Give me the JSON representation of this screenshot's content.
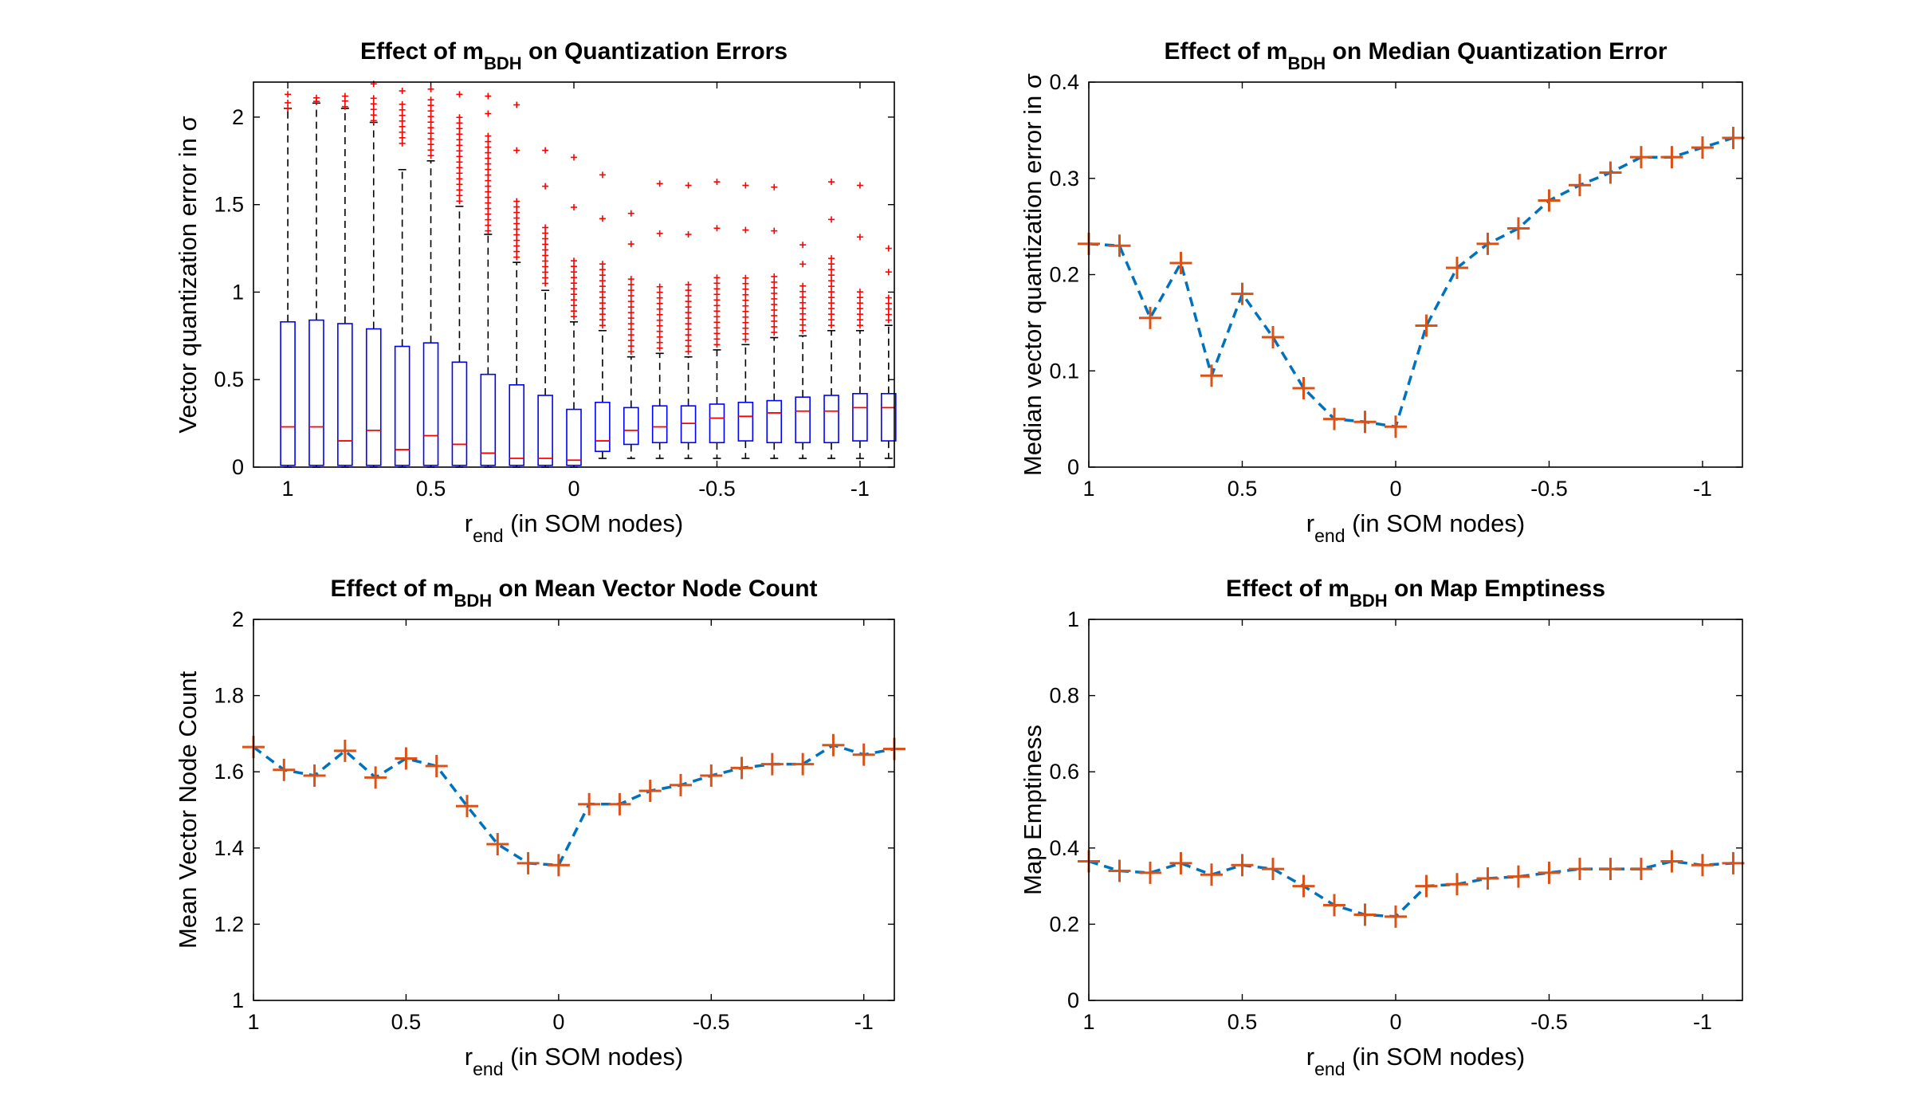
{
  "colors": {
    "box": "#0000ff",
    "median_bar": "#ff0000",
    "outlier": "#ff0000",
    "whisker": "#000000",
    "line": "#0072bd",
    "marker": "#d95319"
  },
  "chart_data": [
    {
      "type": "box",
      "title": "Effect of m",
      "title_sub": "BDH",
      "title_rest": " on Quantization Errors",
      "xlabel": "r",
      "xlabel_sub": "end",
      "xlabel_rest": " (in SOM nodes)",
      "ylabel": "Vector quantization error in σ",
      "xlim": [
        1.12,
        -1.12
      ],
      "ylim": [
        0,
        2.2
      ],
      "xticks": [
        1,
        0.5,
        0,
        -0.5,
        -1
      ],
      "xtick_labels": [
        "1",
        "0.5",
        "0",
        "-0.5",
        "-1"
      ],
      "yticks": [
        0,
        0.5,
        1,
        1.5,
        2
      ],
      "ytick_labels": [
        "0",
        "0.5",
        "1",
        "1.5",
        "2"
      ],
      "x": [
        1.0,
        0.9,
        0.8,
        0.7,
        0.6,
        0.5,
        0.4,
        0.3,
        0.2,
        0.1,
        0.0,
        -0.1,
        -0.2,
        -0.3,
        -0.4,
        -0.5,
        -0.6,
        -0.7,
        -0.8,
        -0.9,
        -1.0,
        -1.1
      ],
      "q1": [
        0.01,
        0.01,
        0.01,
        0.01,
        0.01,
        0.01,
        0.01,
        0.01,
        0.01,
        0.01,
        0.01,
        0.09,
        0.13,
        0.14,
        0.14,
        0.14,
        0.15,
        0.14,
        0.14,
        0.14,
        0.15,
        0.15
      ],
      "median": [
        0.23,
        0.23,
        0.15,
        0.21,
        0.1,
        0.18,
        0.13,
        0.08,
        0.05,
        0.05,
        0.04,
        0.15,
        0.21,
        0.23,
        0.25,
        0.28,
        0.29,
        0.31,
        0.32,
        0.32,
        0.34,
        0.34
      ],
      "q3": [
        0.83,
        0.84,
        0.82,
        0.79,
        0.69,
        0.71,
        0.6,
        0.53,
        0.47,
        0.41,
        0.33,
        0.37,
        0.34,
        0.35,
        0.35,
        0.36,
        0.37,
        0.38,
        0.4,
        0.41,
        0.42,
        0.42
      ],
      "whisker_low": [
        0,
        0,
        0,
        0,
        0,
        0,
        0,
        0,
        0,
        0,
        0,
        0.05,
        0.05,
        0.05,
        0.05,
        0.05,
        0.05,
        0.05,
        0.05,
        0.05,
        0.05,
        0.05
      ],
      "whisker_high": [
        2.05,
        2.08,
        2.05,
        1.97,
        1.7,
        1.75,
        1.49,
        1.33,
        1.17,
        1.01,
        0.83,
        0.78,
        0.63,
        0.65,
        0.63,
        0.67,
        0.7,
        0.74,
        0.75,
        0.78,
        0.78,
        0.81
      ],
      "outlier_bands": [
        {
          "x": 1.0,
          "from": 2.05,
          "to": 2.1,
          "max": 2.13
        },
        {
          "x": 0.9,
          "from": 2.09,
          "to": 2.1,
          "max": 2.11
        },
        {
          "x": 0.8,
          "from": 2.06,
          "to": 2.1,
          "max": 2.12
        },
        {
          "x": 0.7,
          "from": 1.98,
          "to": 2.12,
          "max": 2.19
        },
        {
          "x": 0.6,
          "from": 1.85,
          "to": 2.1,
          "max": 2.15
        },
        {
          "x": 0.5,
          "from": 1.78,
          "to": 2.1,
          "max": 2.16
        },
        {
          "x": 0.4,
          "from": 1.52,
          "to": 2.02,
          "max": 2.13
        },
        {
          "x": 0.3,
          "from": 1.35,
          "to": 1.92,
          "max": 2.12
        },
        {
          "x": 0.2,
          "from": 1.2,
          "to": 1.55,
          "max": 2.07
        },
        {
          "x": 0.1,
          "from": 1.05,
          "to": 1.4,
          "max": 1.81
        },
        {
          "x": 0.0,
          "from": 0.86,
          "to": 1.2,
          "max": 1.77
        },
        {
          "x": -0.1,
          "from": 0.81,
          "to": 1.17,
          "max": 1.67
        },
        {
          "x": -0.2,
          "from": 0.66,
          "to": 1.1,
          "max": 1.45
        },
        {
          "x": -0.3,
          "from": 0.68,
          "to": 1.05,
          "max": 1.62
        },
        {
          "x": -0.4,
          "from": 0.66,
          "to": 1.05,
          "max": 1.61
        },
        {
          "x": -0.5,
          "from": 0.7,
          "to": 1.1,
          "max": 1.63
        },
        {
          "x": -0.6,
          "from": 0.73,
          "to": 1.1,
          "max": 1.61
        },
        {
          "x": -0.7,
          "from": 0.77,
          "to": 1.1,
          "max": 1.6
        },
        {
          "x": -0.8,
          "from": 0.78,
          "to": 1.05,
          "max": 1.27
        },
        {
          "x": -0.9,
          "from": 0.81,
          "to": 1.2,
          "max": 1.63
        },
        {
          "x": -1.0,
          "from": 0.81,
          "to": 1.02,
          "max": 1.61
        },
        {
          "x": -1.1,
          "from": 0.84,
          "to": 0.98,
          "max": 1.25
        }
      ]
    },
    {
      "type": "line",
      "title": "Effect of m",
      "title_sub": "BDH",
      "title_rest": " on Median Quantization Error",
      "xlabel": "r",
      "xlabel_sub": "end",
      "xlabel_rest": " (in SOM nodes)",
      "ylabel": "Median vector quantization error in σ",
      "xlim": [
        1.0,
        -1.13
      ],
      "ylim": [
        0,
        0.4
      ],
      "xticks": [
        1,
        0.5,
        0,
        -0.5,
        -1
      ],
      "xtick_labels": [
        "1",
        "0.5",
        "0",
        "-0.5",
        "-1"
      ],
      "yticks": [
        0,
        0.1,
        0.2,
        0.3,
        0.4
      ],
      "ytick_labels": [
        "0",
        "0.1",
        "0.2",
        "0.3",
        "0.4"
      ],
      "x": [
        1.0,
        0.9,
        0.8,
        0.7,
        0.6,
        0.5,
        0.4,
        0.3,
        0.2,
        0.1,
        0.0,
        -0.1,
        -0.2,
        -0.3,
        -0.4,
        -0.5,
        -0.6,
        -0.7,
        -0.8,
        -0.9,
        -1.0,
        -1.1
      ],
      "y": [
        0.232,
        0.23,
        0.155,
        0.212,
        0.095,
        0.18,
        0.135,
        0.082,
        0.05,
        0.047,
        0.042,
        0.147,
        0.207,
        0.232,
        0.248,
        0.277,
        0.293,
        0.306,
        0.322,
        0.322,
        0.332,
        0.342
      ]
    },
    {
      "type": "line",
      "title": "Effect of m",
      "title_sub": "BDH",
      "title_rest": " on Mean Vector Node Count",
      "xlabel": "r",
      "xlabel_sub": "end",
      "xlabel_rest": " (in SOM nodes)",
      "ylabel": "Mean Vector Node Count",
      "xlim": [
        1.0,
        -1.1
      ],
      "ylim": [
        1,
        2
      ],
      "xticks": [
        1,
        0.5,
        0,
        -0.5,
        -1
      ],
      "xtick_labels": [
        "1",
        "0.5",
        "0",
        "-0.5",
        "-1"
      ],
      "yticks": [
        1,
        1.2,
        1.4,
        1.6,
        1.8,
        2
      ],
      "ytick_labels": [
        "1",
        "1.2",
        "1.4",
        "1.6",
        "1.8",
        "2"
      ],
      "x": [
        1.0,
        0.9,
        0.8,
        0.7,
        0.6,
        0.5,
        0.4,
        0.3,
        0.2,
        0.1,
        0.0,
        -0.1,
        -0.2,
        -0.3,
        -0.4,
        -0.5,
        -0.6,
        -0.7,
        -0.8,
        -0.9,
        -1.0,
        -1.1
      ],
      "y": [
        1.665,
        1.605,
        1.59,
        1.655,
        1.585,
        1.635,
        1.615,
        1.51,
        1.41,
        1.36,
        1.355,
        1.515,
        1.515,
        1.55,
        1.565,
        1.59,
        1.61,
        1.62,
        1.62,
        1.67,
        1.645,
        1.66
      ]
    },
    {
      "type": "line",
      "title": "Effect of m",
      "title_sub": "BDH",
      "title_rest": " on Map Emptiness",
      "xlabel": "r",
      "xlabel_sub": "end",
      "xlabel_rest": " (in SOM nodes)",
      "ylabel": "Map Emptiness",
      "xlim": [
        1.0,
        -1.13
      ],
      "ylim": [
        0,
        1
      ],
      "xticks": [
        1,
        0.5,
        0,
        -0.5,
        -1
      ],
      "xtick_labels": [
        "1",
        "0.5",
        "0",
        "-0.5",
        "-1"
      ],
      "yticks": [
        0,
        0.2,
        0.4,
        0.6,
        0.8,
        1
      ],
      "ytick_labels": [
        "0",
        "0.2",
        "0.4",
        "0.6",
        "0.8",
        "1"
      ],
      "x": [
        1.0,
        0.9,
        0.8,
        0.7,
        0.6,
        0.5,
        0.4,
        0.3,
        0.2,
        0.1,
        0.0,
        -0.1,
        -0.2,
        -0.3,
        -0.4,
        -0.5,
        -0.6,
        -0.7,
        -0.8,
        -0.9,
        -1.0,
        -1.1
      ],
      "y": [
        0.365,
        0.34,
        0.335,
        0.36,
        0.33,
        0.355,
        0.345,
        0.3,
        0.25,
        0.225,
        0.22,
        0.3,
        0.305,
        0.32,
        0.325,
        0.335,
        0.345,
        0.345,
        0.345,
        0.365,
        0.355,
        0.36
      ]
    }
  ]
}
